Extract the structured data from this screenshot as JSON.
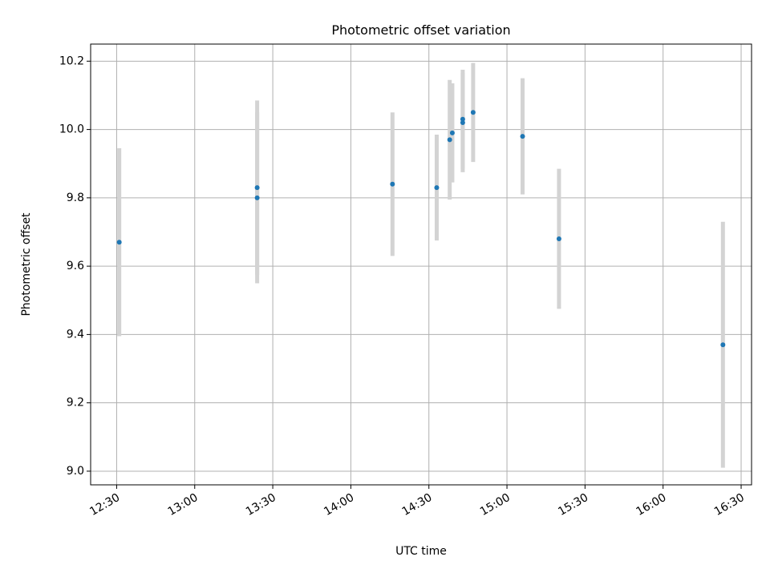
{
  "chart_data": {
    "type": "scatter",
    "title": "Photometric offset variation",
    "xlabel": "UTC time",
    "ylabel": "Photometric offset",
    "x_axis_type": "time",
    "xlim": [
      "12:20",
      "16:34"
    ],
    "ylim": [
      8.96,
      10.25
    ],
    "x_ticks": [
      "12:30",
      "13:00",
      "13:30",
      "14:00",
      "14:30",
      "15:00",
      "15:30",
      "16:00",
      "16:30"
    ],
    "y_ticks": [
      9.0,
      9.2,
      9.4,
      9.6,
      9.8,
      10.0,
      10.2
    ],
    "y_tick_labels": [
      "9.0",
      "9.2",
      "9.4",
      "9.6",
      "9.8",
      "10.0",
      "10.2"
    ],
    "grid": true,
    "marker_color": "#1f77b4",
    "errorbar_color": "#d3d3d3",
    "points": [
      {
        "x": "12:31",
        "y": 9.67,
        "err": 0.275
      },
      {
        "x": "13:24",
        "y": 9.83,
        "err": 0.255
      },
      {
        "x": "13:24",
        "y": 9.8,
        "err": 0.25
      },
      {
        "x": "14:16",
        "y": 9.84,
        "err": 0.21
      },
      {
        "x": "14:33",
        "y": 9.83,
        "err": 0.155
      },
      {
        "x": "14:38",
        "y": 9.97,
        "err": 0.175
      },
      {
        "x": "14:39",
        "y": 9.99,
        "err": 0.145
      },
      {
        "x": "14:43",
        "y": 10.02,
        "err": 0.145
      },
      {
        "x": "14:43",
        "y": 10.03,
        "err": 0.145
      },
      {
        "x": "14:47",
        "y": 10.05,
        "err": 0.145
      },
      {
        "x": "15:06",
        "y": 9.98,
        "err": 0.17
      },
      {
        "x": "15:20",
        "y": 9.68,
        "err": 0.205
      },
      {
        "x": "16:23",
        "y": 9.37,
        "err": 0.36
      }
    ]
  }
}
